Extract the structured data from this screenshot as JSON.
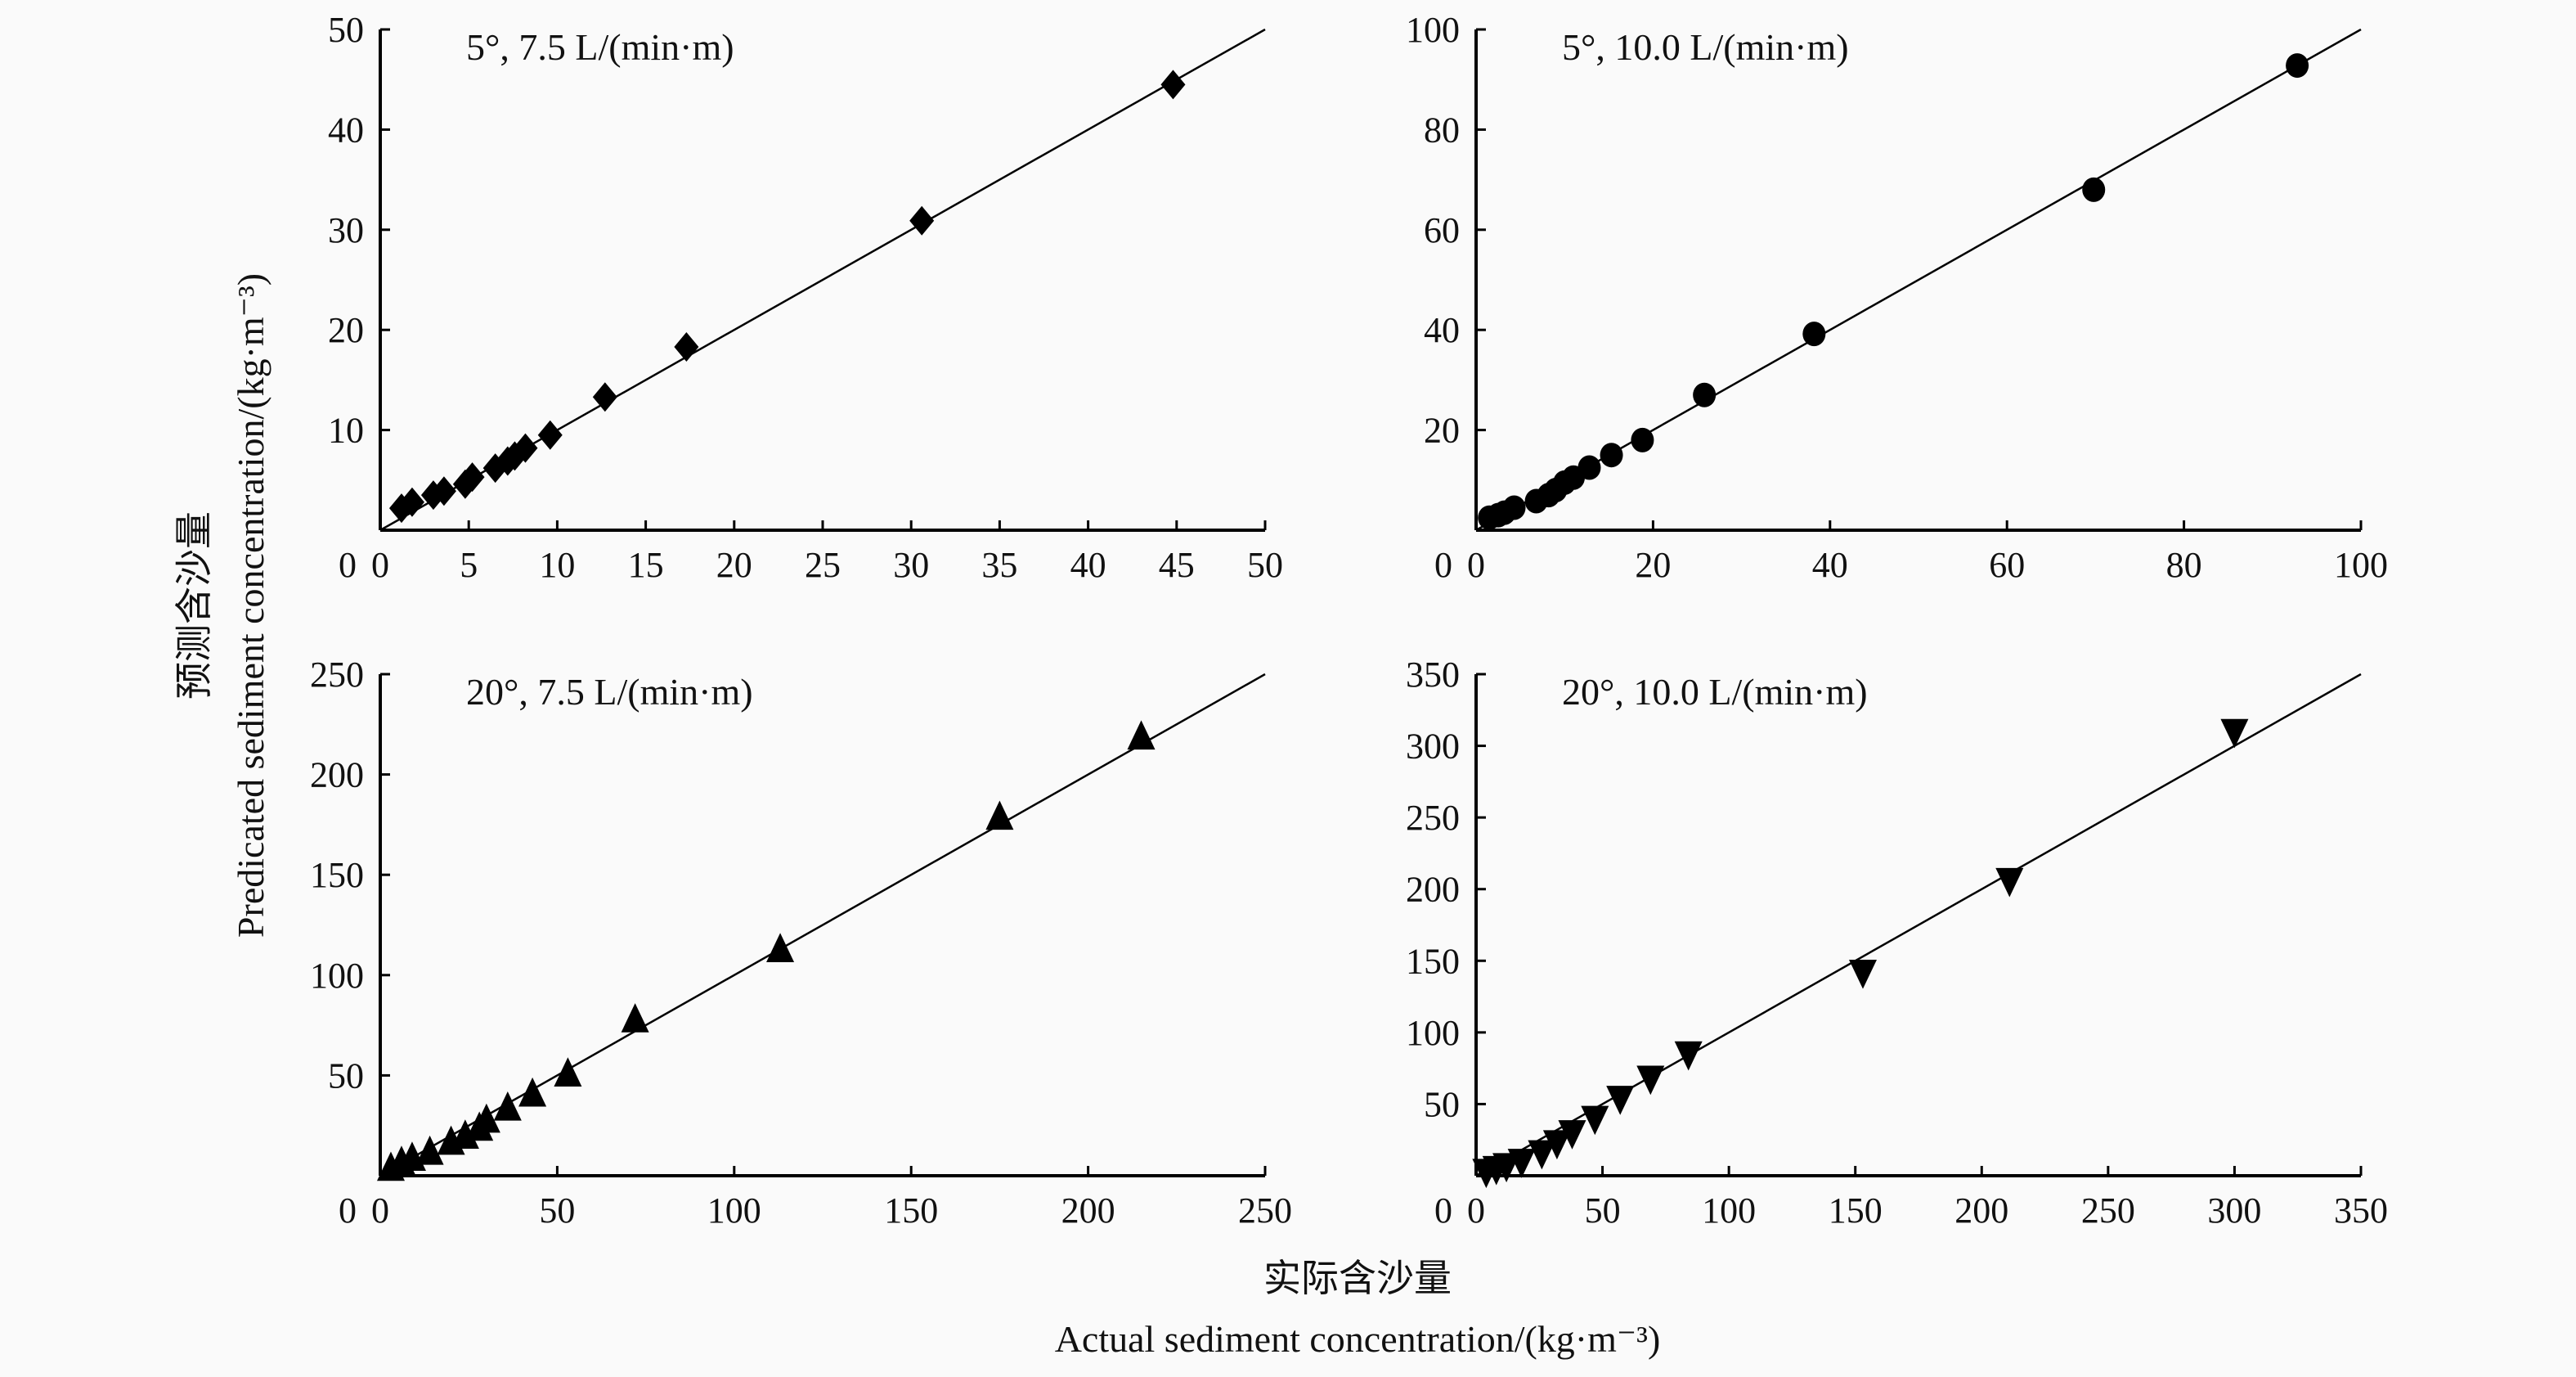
{
  "figure": {
    "ylabel_cn": "预测含沙量",
    "ylabel_en": "Predicated sediment concentration/(kg·m⁻³)",
    "xlabel_cn": "实际含沙量",
    "xlabel_en": "Actual sediment concentration/(kg·m⁻³)"
  },
  "chart_data": [
    {
      "type": "scatter",
      "title": "5°, 7.5 L/(min·m)",
      "marker": "diamond",
      "xlim": [
        0,
        50
      ],
      "ylim": [
        0,
        50
      ],
      "xticks": [
        0,
        5,
        10,
        15,
        20,
        25,
        30,
        35,
        40,
        45,
        50
      ],
      "yticks": [
        10,
        20,
        30,
        40,
        50
      ],
      "fit_line": [
        [
          0,
          0
        ],
        [
          50,
          50
        ]
      ],
      "points": [
        [
          1.2,
          2.2
        ],
        [
          1.8,
          2.8
        ],
        [
          3,
          3.5
        ],
        [
          3.6,
          3.9
        ],
        [
          4.8,
          4.6
        ],
        [
          5.2,
          5.3
        ],
        [
          6.5,
          6.2
        ],
        [
          7.2,
          6.9
        ],
        [
          7.6,
          7.4
        ],
        [
          8.2,
          8.2
        ],
        [
          9.6,
          9.5
        ],
        [
          12.7,
          13.3
        ],
        [
          17.3,
          18.3
        ],
        [
          30.6,
          30.9
        ],
        [
          44.8,
          44.5
        ]
      ]
    },
    {
      "type": "scatter",
      "title": "5°, 10.0 L/(min·m)",
      "marker": "circle",
      "xlim": [
        0,
        100
      ],
      "ylim": [
        0,
        100
      ],
      "xticks": [
        0,
        20,
        40,
        60,
        80,
        100
      ],
      "yticks": [
        20,
        40,
        60,
        80,
        100
      ],
      "fit_line": [
        [
          0,
          0
        ],
        [
          100,
          100
        ]
      ],
      "points": [
        [
          1.5,
          2.5
        ],
        [
          2.5,
          3
        ],
        [
          3.2,
          3.5
        ],
        [
          4.3,
          4.5
        ],
        [
          6.8,
          5.8
        ],
        [
          8.2,
          7
        ],
        [
          9,
          8
        ],
        [
          10,
          9.5
        ],
        [
          11,
          10.5
        ],
        [
          12.8,
          12.5
        ],
        [
          15.3,
          15
        ],
        [
          18.8,
          18
        ],
        [
          25.8,
          27
        ],
        [
          38.2,
          39.2
        ],
        [
          69.8,
          68
        ],
        [
          92.8,
          92.8
        ]
      ]
    },
    {
      "type": "scatter",
      "title": "20°, 7.5 L/(min·m)",
      "marker": "triangle-up",
      "xlim": [
        0,
        250
      ],
      "ylim": [
        0,
        250
      ],
      "xticks": [
        0,
        50,
        100,
        150,
        200,
        250
      ],
      "yticks": [
        50,
        100,
        150,
        200,
        250
      ],
      "fit_line": [
        [
          0,
          0
        ],
        [
          250,
          250
        ]
      ],
      "points": [
        [
          3,
          3
        ],
        [
          6,
          6
        ],
        [
          9,
          8
        ],
        [
          14,
          11
        ],
        [
          20,
          16
        ],
        [
          24,
          19
        ],
        [
          28,
          23
        ],
        [
          30,
          27
        ],
        [
          36,
          33
        ],
        [
          43,
          40
        ],
        [
          53,
          50
        ],
        [
          72,
          77
        ],
        [
          113,
          112
        ],
        [
          175,
          178
        ],
        [
          215,
          218
        ]
      ]
    },
    {
      "type": "scatter",
      "title": "20°, 10.0 L/(min·m)",
      "marker": "triangle-down",
      "xlim": [
        0,
        350
      ],
      "ylim": [
        0,
        350
      ],
      "xticks": [
        0,
        50,
        100,
        150,
        200,
        250,
        300,
        350
      ],
      "yticks": [
        50,
        100,
        150,
        200,
        250,
        300,
        350
      ],
      "fit_line": [
        [
          0,
          0
        ],
        [
          350,
          350
        ]
      ],
      "points": [
        [
          4,
          4
        ],
        [
          8,
          6
        ],
        [
          12,
          8
        ],
        [
          18,
          11
        ],
        [
          26,
          17
        ],
        [
          32,
          24
        ],
        [
          38,
          31
        ],
        [
          47,
          41
        ],
        [
          57,
          55
        ],
        [
          69,
          69
        ],
        [
          84,
          86
        ],
        [
          153,
          143
        ],
        [
          211,
          207
        ],
        [
          300,
          311
        ]
      ]
    }
  ]
}
